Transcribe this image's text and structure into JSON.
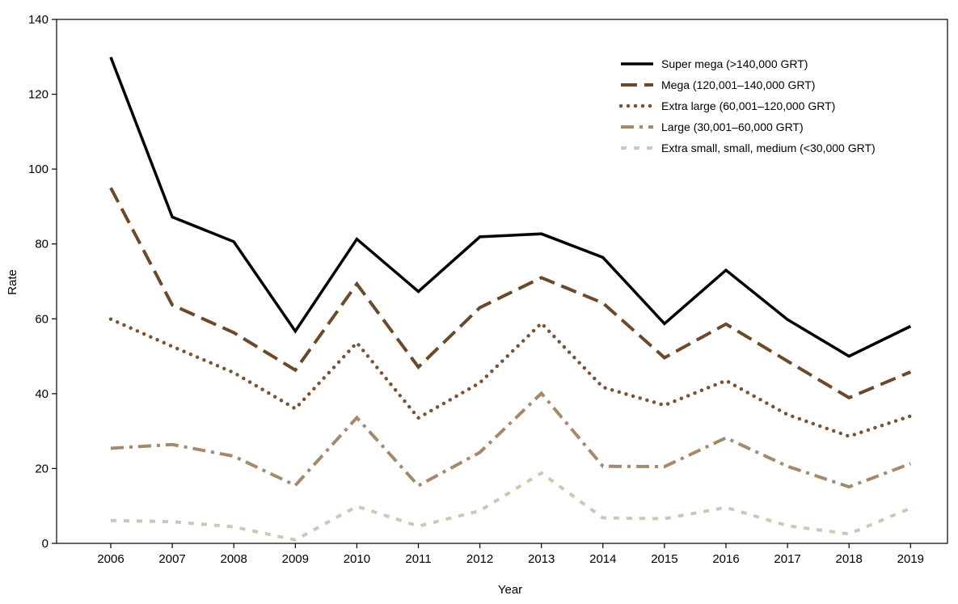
{
  "chart_data": {
    "type": "line",
    "title": "",
    "xlabel": "Year",
    "ylabel": "Rate",
    "ylim": [
      0,
      140
    ],
    "yticks": [
      0,
      20,
      40,
      60,
      80,
      100,
      120,
      140
    ],
    "grid": false,
    "legend_position": "top-right",
    "categories": [
      "2006",
      "2007",
      "2008",
      "2009",
      "2010",
      "2011",
      "2012",
      "2013",
      "2014",
      "2015",
      "2016",
      "2017",
      "2018",
      "2019"
    ],
    "series": [
      {
        "name": "Super mega (>140,000 GRT)",
        "color": "#000000",
        "style": "solid",
        "values": [
          129.9,
          87.2,
          80.6,
          56.7,
          81.3,
          67.3,
          81.9,
          82.7,
          76.4,
          58.7,
          73.0,
          59.8,
          50.0,
          58.0
        ]
      },
      {
        "name": "Mega (120,001–140,000 GRT)",
        "color": "#6b4a2b",
        "style": "dash",
        "values": [
          95.0,
          63.7,
          56.3,
          46.3,
          69.3,
          47.1,
          63.0,
          71.0,
          64.2,
          49.6,
          58.6,
          48.7,
          38.9,
          45.8
        ]
      },
      {
        "name": "Extra large (60,001–120,000 GRT)",
        "color": "#7a5230",
        "style": "dot",
        "values": [
          59.9,
          52.6,
          45.6,
          36.0,
          53.6,
          33.5,
          42.9,
          58.8,
          41.7,
          36.9,
          43.5,
          34.4,
          28.6,
          34.0
        ]
      },
      {
        "name": "Large (30,001–60,000 GRT)",
        "color": "#a5896c",
        "style": "dashdot",
        "values": [
          25.4,
          26.4,
          23.3,
          15.5,
          33.6,
          15.4,
          24.3,
          40.1,
          20.6,
          20.5,
          28.2,
          20.6,
          15.1,
          21.3
        ]
      },
      {
        "name": "Extra small, small, medium (<30,000 GRT)",
        "color": "#d3c5b4",
        "style": "smalldash",
        "values": [
          6.1,
          5.8,
          4.4,
          0.9,
          9.9,
          4.6,
          8.7,
          18.8,
          6.8,
          6.6,
          9.6,
          4.7,
          2.5,
          9.4
        ]
      }
    ]
  }
}
